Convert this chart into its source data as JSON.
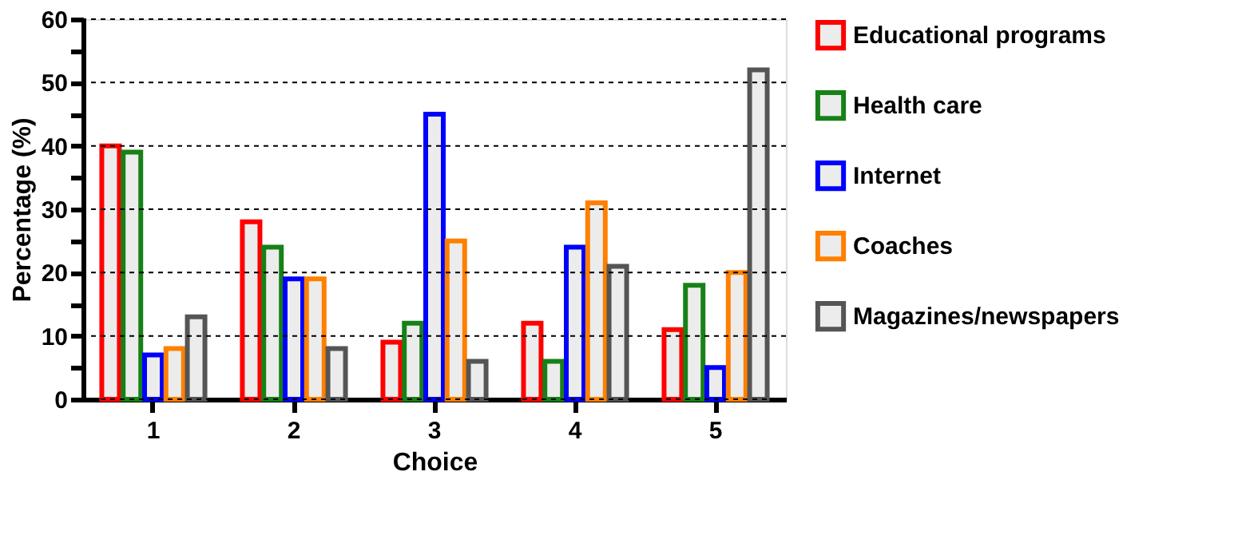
{
  "chart_data": {
    "type": "bar",
    "xlabel": "Choice",
    "ylabel": "Percentage (%)",
    "categories": [
      "1",
      "2",
      "3",
      "4",
      "5"
    ],
    "series": [
      {
        "name": "Educational programs",
        "color": "#ff0000",
        "values": [
          40,
          28,
          9,
          12,
          11
        ]
      },
      {
        "name": "Health care",
        "color": "#178117",
        "values": [
          39,
          24,
          12,
          6,
          18
        ]
      },
      {
        "name": "Internet",
        "color": "#0000ff",
        "values": [
          7,
          19,
          45,
          24,
          5
        ]
      },
      {
        "name": "Coaches",
        "color": "#ff8000",
        "values": [
          8,
          19,
          25,
          31,
          20
        ]
      },
      {
        "name": "Magazines/newspapers",
        "color": "#555555",
        "values": [
          13,
          8,
          6,
          21,
          52
        ]
      }
    ],
    "ylim": [
      0,
      60
    ],
    "yticks": [
      0,
      {
        "value": 5,
        "label": null
      },
      10,
      {
        "value": 15,
        "label": null
      },
      20,
      {
        "value": 25,
        "label": null
      },
      30,
      {
        "value": 35,
        "label": null
      },
      40,
      {
        "value": 45,
        "label": null
      },
      50,
      {
        "value": 55,
        "label": null
      },
      60
    ],
    "grid": "y",
    "legend": "right"
  }
}
